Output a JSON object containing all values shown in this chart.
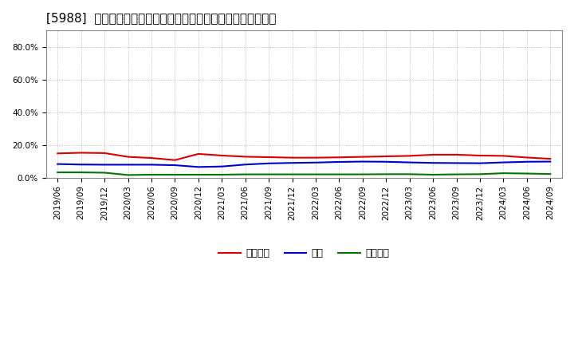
{
  "title": "[5988]  売上債権、在庫、買入債務の総資産に対する比率の推移",
  "x_labels": [
    "2019/06",
    "2019/09",
    "2019/12",
    "2020/03",
    "2020/06",
    "2020/09",
    "2020/12",
    "2021/03",
    "2021/06",
    "2021/09",
    "2021/12",
    "2022/03",
    "2022/06",
    "2022/09",
    "2022/12",
    "2023/03",
    "2023/06",
    "2023/09",
    "2023/12",
    "2024/03",
    "2024/06",
    "2024/09"
  ],
  "uriage": [
    0.148,
    0.152,
    0.15,
    0.127,
    0.12,
    0.107,
    0.145,
    0.135,
    0.128,
    0.125,
    0.122,
    0.122,
    0.124,
    0.127,
    0.13,
    0.133,
    0.14,
    0.14,
    0.135,
    0.133,
    0.123,
    0.115
  ],
  "zaiko": [
    0.083,
    0.08,
    0.079,
    0.079,
    0.079,
    0.076,
    0.065,
    0.068,
    0.08,
    0.087,
    0.09,
    0.092,
    0.096,
    0.098,
    0.097,
    0.093,
    0.09,
    0.089,
    0.088,
    0.093,
    0.097,
    0.098
  ],
  "kaiire": [
    0.032,
    0.032,
    0.03,
    0.016,
    0.018,
    0.018,
    0.018,
    0.018,
    0.02,
    0.02,
    0.02,
    0.02,
    0.02,
    0.02,
    0.021,
    0.021,
    0.018,
    0.02,
    0.021,
    0.027,
    0.025,
    0.022
  ],
  "uriage_color": "#dd0000",
  "zaiko_color": "#0000cc",
  "kaiire_color": "#007700",
  "uriage_label": "売上債権",
  "zaiko_label": "在庫",
  "kaiire_label": "買入債務",
  "ylim": [
    0.0,
    0.9
  ],
  "yticks": [
    0.0,
    0.2,
    0.4,
    0.6,
    0.8
  ],
  "ytick_labels": [
    "0.0%",
    "20.0%",
    "40.0%",
    "60.0%",
    "80.0%"
  ],
  "background_color": "#ffffff",
  "grid_color": "#aaaaaa",
  "title_fontsize": 11,
  "tick_fontsize": 7.5,
  "legend_fontsize": 9
}
